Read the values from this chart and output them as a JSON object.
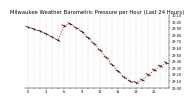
{
  "title": "Milwaukee Weather Barometric Pressure per Hour (Last 24 Hours)",
  "hours": [
    0,
    1,
    2,
    3,
    4,
    5,
    6,
    7,
    8,
    9,
    10,
    11,
    12,
    13,
    14,
    15,
    16,
    17,
    18,
    19,
    20,
    21,
    22,
    23
  ],
  "pressure": [
    29.92,
    29.89,
    29.86,
    29.82,
    29.77,
    29.72,
    29.94,
    29.97,
    29.91,
    29.85,
    29.76,
    29.67,
    29.57,
    29.46,
    29.35,
    29.25,
    29.16,
    29.1,
    29.08,
    29.12,
    29.2,
    29.27,
    29.33,
    29.38
  ],
  "ylim_min": 29.0,
  "ylim_max": 30.1,
  "ytick_values": [
    29.0,
    29.1,
    29.2,
    29.3,
    29.4,
    29.5,
    29.6,
    29.7,
    29.8,
    29.9,
    30.0,
    30.1
  ],
  "ytick_labels": [
    "29.00",
    "29.10",
    "29.20",
    "29.30",
    "29.40",
    "29.50",
    "29.60",
    "29.70",
    "29.80",
    "29.90",
    "30.00",
    "30.10"
  ],
  "line_color": "#ff0000",
  "marker_color": "#000000",
  "bg_color": "#ffffff",
  "grid_color": "#888888",
  "title_fontsize": 3.8,
  "tick_fontsize": 2.5,
  "line_width": 0.5,
  "marker_size": 2.0
}
